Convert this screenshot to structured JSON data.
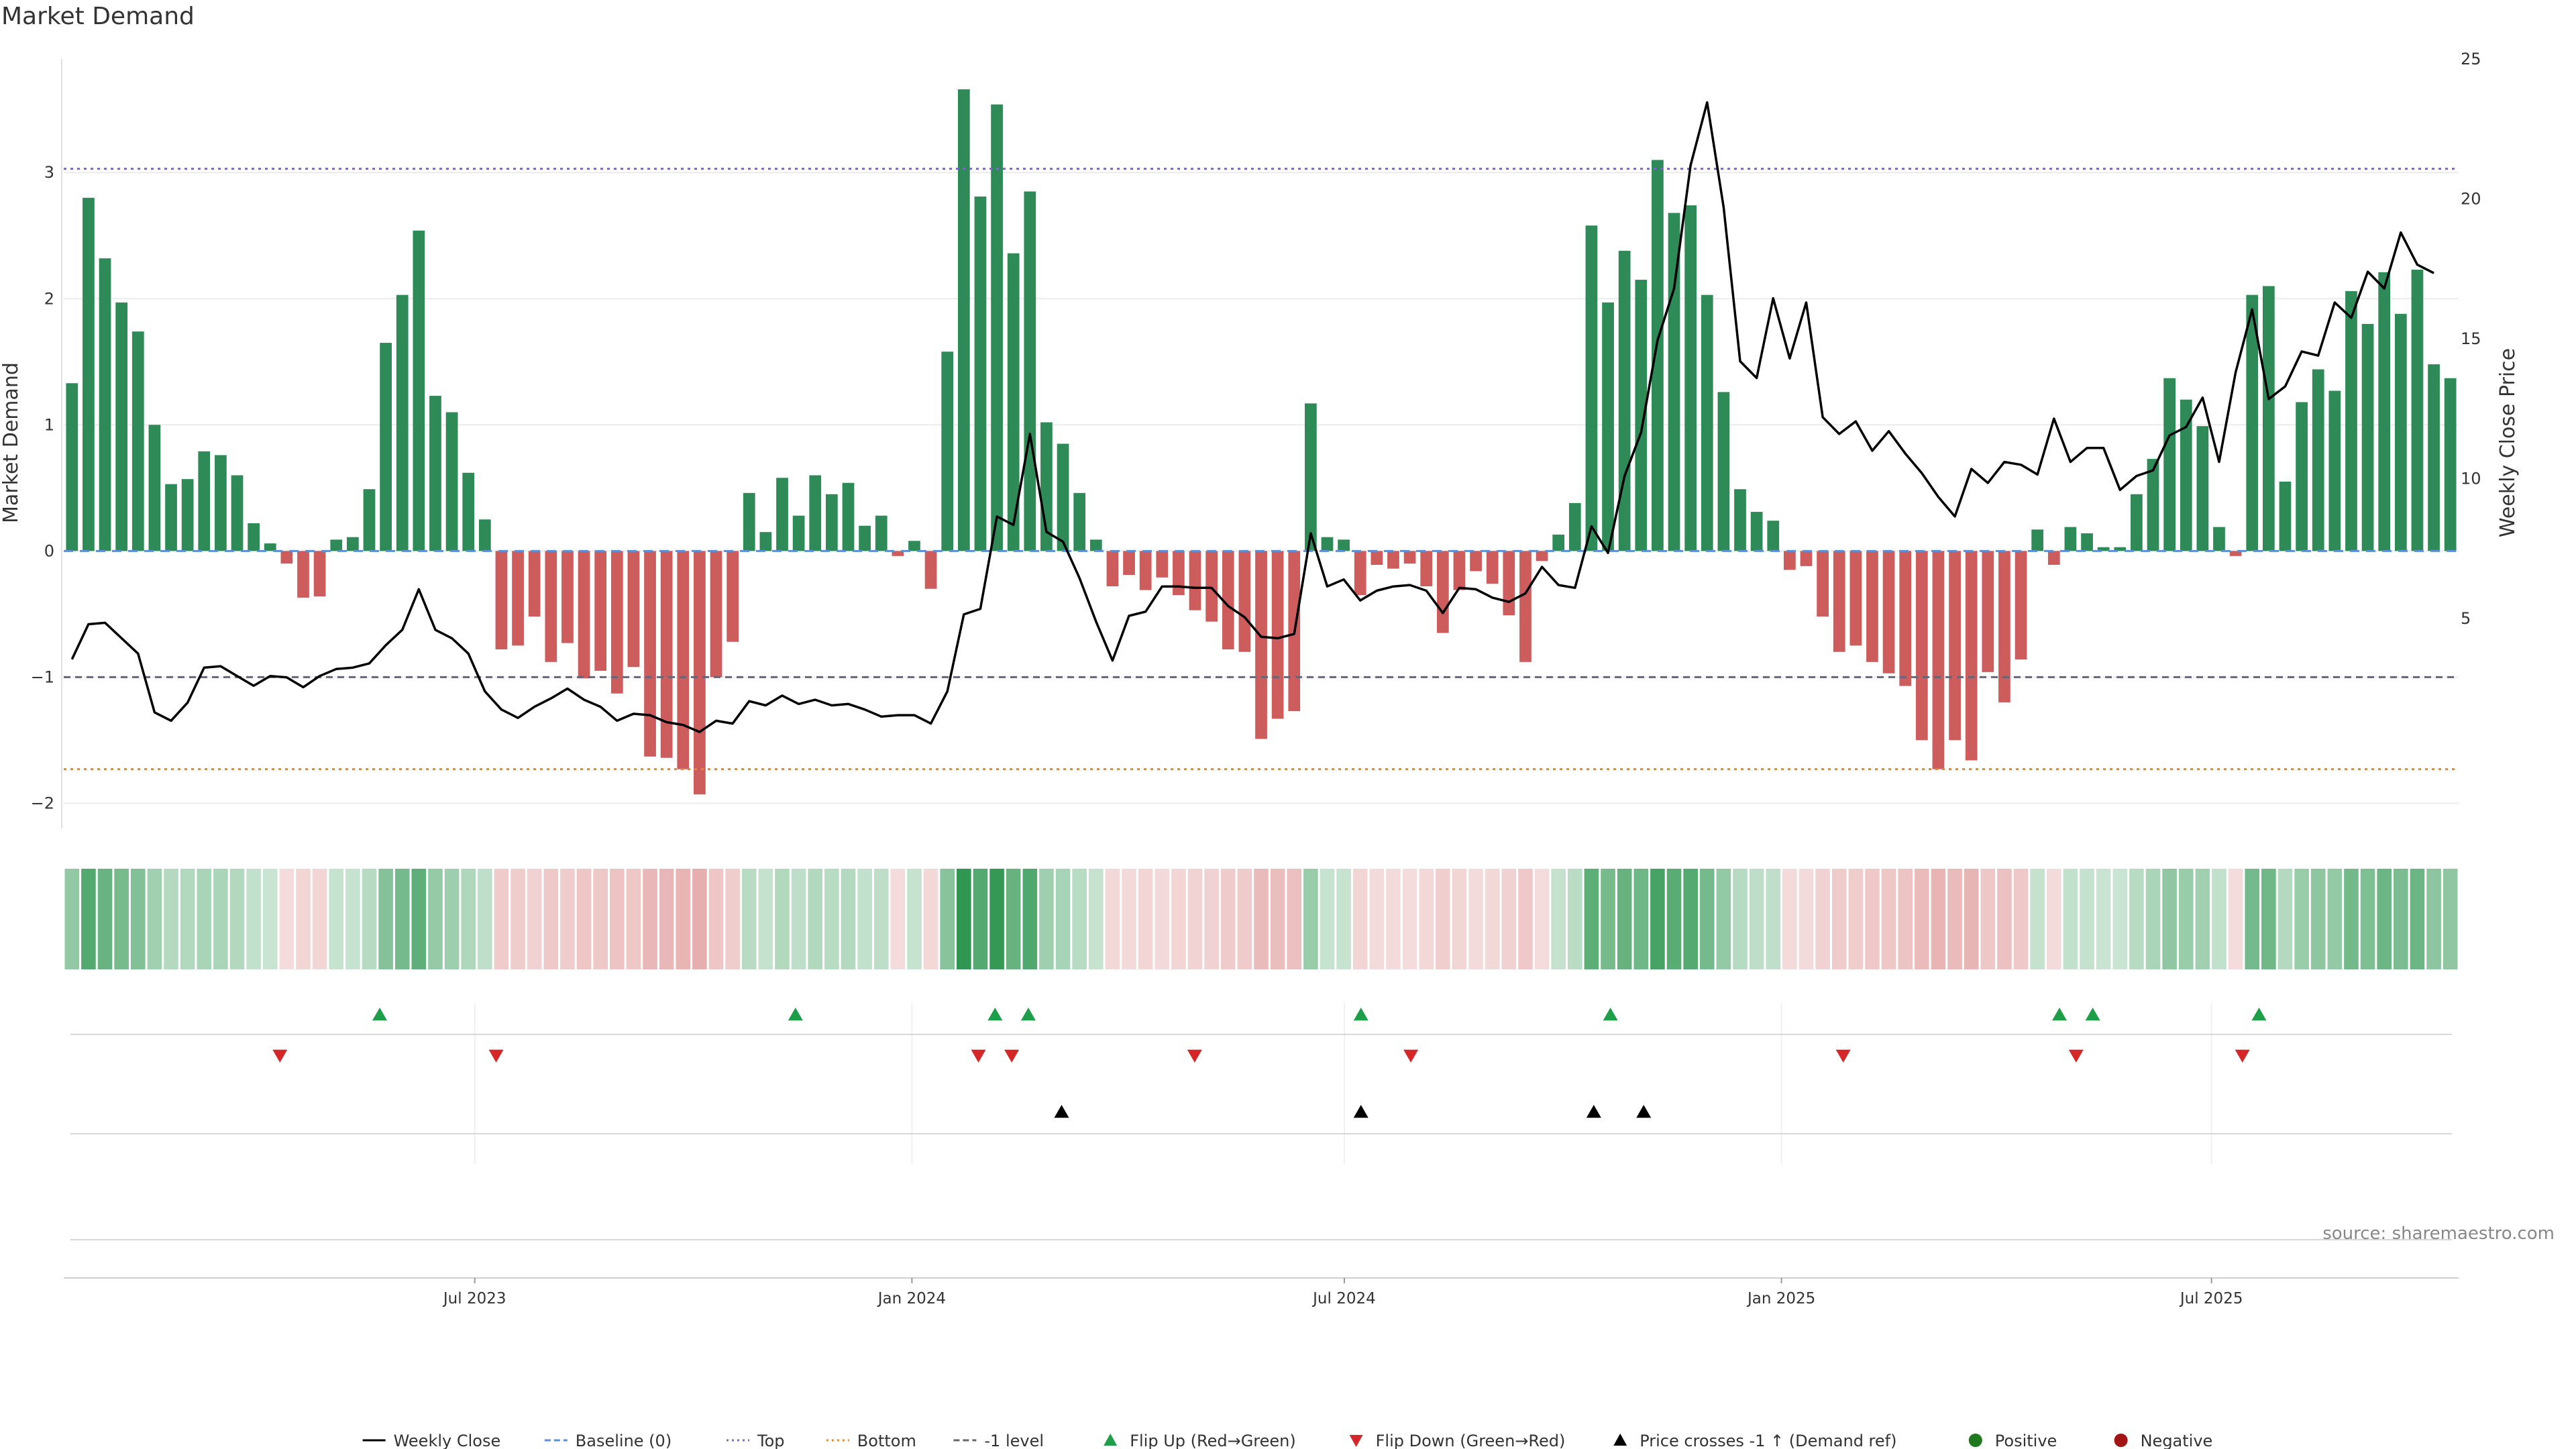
{
  "page": {
    "title": "Market Demand",
    "source": "source: sharemaestro.com"
  },
  "chart_data": {
    "type": "bar",
    "title": "Market Demand",
    "ylabel": "Market Demand",
    "y2label": "Weekly Close Price",
    "ylim": [
      -2.2,
      3.9
    ],
    "y2lim": [
      -2.5,
      25
    ],
    "yticks": [
      3,
      2,
      1,
      0,
      -1,
      -2
    ],
    "y2ticks": [
      25,
      20,
      15,
      10,
      5
    ],
    "x_start": "2023-01-09",
    "x_end": "2025-10-13",
    "xtick_labels": [
      {
        "date": "2023-07-01",
        "label": "Jul 2023"
      },
      {
        "date": "2024-01-01",
        "label": "Jan 2024"
      },
      {
        "date": "2024-07-01",
        "label": "Jul 2024"
      },
      {
        "date": "2025-01-01",
        "label": "Jan 2025"
      },
      {
        "date": "2025-07-01",
        "label": "Jul 2025"
      }
    ],
    "reference_lines": [
      {
        "name": "Top",
        "value": 3.03,
        "color": "#7b68c8",
        "dash": "dotted"
      },
      {
        "name": "-1 level",
        "value": -1.0,
        "color": "#666677",
        "dash": "dashed"
      },
      {
        "name": "Bottom",
        "value": -1.73,
        "color": "#e08a2c",
        "dash": "dotted"
      }
    ],
    "colors": {
      "positive": "#2e8b57",
      "negative": "#cd5c5c",
      "price": "#000000",
      "baseline": "#5b8fd6",
      "flip_up": "#1f9e4a",
      "flip_down": "#d62728",
      "cross": "#000000",
      "grid": "#ececec"
    },
    "demand_weekly": [
      1.33,
      2.8,
      2.32,
      1.97,
      1.74,
      1.0,
      0.53,
      0.57,
      0.79,
      0.76,
      0.6,
      0.22,
      0.06,
      -0.1,
      -0.37,
      -0.36,
      0.09,
      0.11,
      0.49,
      1.65,
      2.03,
      2.54,
      1.23,
      1.1,
      0.62,
      0.25,
      -0.78,
      -0.75,
      -0.52,
      -0.88,
      -0.73,
      -1.01,
      -0.95,
      -1.13,
      -0.92,
      -1.63,
      -1.64,
      -1.73,
      -1.93,
      -1.0,
      -0.72,
      0.46,
      0.15,
      0.58,
      0.28,
      0.6,
      0.45,
      0.54,
      0.2,
      0.28,
      -0.04,
      0.08,
      -0.3,
      1.58,
      3.66,
      2.81,
      3.54,
      2.36,
      2.85,
      1.02,
      0.85,
      0.46,
      0.09,
      -0.28,
      -0.19,
      -0.31,
      -0.21,
      -0.35,
      -0.47,
      -0.56,
      -0.78,
      -0.8,
      -1.49,
      -1.33,
      -1.27,
      1.17,
      0.11,
      0.09,
      -0.35,
      -0.11,
      -0.14,
      -0.1,
      -0.28,
      -0.65,
      -0.31,
      -0.16,
      -0.26,
      -0.51,
      -0.88,
      -0.08,
      0.13,
      0.38,
      2.58,
      1.97,
      2.38,
      2.15,
      3.1,
      2.68,
      2.74,
      2.03,
      1.26,
      0.49,
      0.31,
      0.24,
      -0.15,
      -0.12,
      -0.52,
      -0.8,
      -0.75,
      -0.88,
      -0.97,
      -1.07,
      -1.5,
      -1.73,
      -1.5,
      -1.66,
      -0.96,
      -1.2,
      -0.86,
      0.17,
      -0.11,
      0.19,
      0.14,
      0.03,
      0.03,
      0.45,
      0.73,
      1.37,
      1.2,
      0.99,
      0.19,
      -0.04,
      2.03,
      2.1,
      0.55,
      1.18,
      1.44,
      1.27,
      2.06,
      1.8,
      2.21,
      1.88,
      2.23,
      1.48,
      1.37
    ],
    "price_weekly": [
      3.55,
      4.8,
      4.85,
      4.3,
      3.75,
      1.65,
      1.35,
      2.0,
      3.25,
      3.3,
      2.95,
      2.6,
      2.95,
      2.9,
      2.55,
      2.95,
      3.2,
      3.25,
      3.4,
      4.05,
      4.6,
      6.05,
      4.6,
      4.3,
      3.75,
      2.4,
      1.75,
      1.45,
      1.85,
      2.15,
      2.5,
      2.1,
      1.85,
      1.35,
      1.6,
      1.55,
      1.3,
      1.2,
      0.95,
      1.35,
      1.25,
      2.05,
      1.9,
      2.25,
      1.95,
      2.1,
      1.9,
      1.95,
      1.75,
      1.5,
      1.55,
      1.55,
      1.25,
      2.4,
      5.15,
      5.35,
      8.65,
      8.35,
      11.6,
      8.1,
      7.75,
      6.45,
      4.9,
      3.5,
      5.1,
      5.25,
      6.15,
      6.15,
      6.1,
      6.1,
      5.45,
      5.05,
      4.35,
      4.3,
      4.45,
      8.05,
      6.15,
      6.4,
      5.65,
      6.0,
      6.15,
      6.2,
      6.0,
      5.2,
      6.1,
      6.05,
      5.75,
      5.6,
      5.9,
      6.85,
      6.2,
      6.1,
      8.3,
      7.35,
      10.1,
      11.65,
      14.95,
      16.8,
      21.2,
      23.45,
      19.7,
      14.2,
      13.6,
      16.45,
      14.3,
      16.3,
      12.2,
      11.6,
      12.05,
      11.0,
      11.7,
      10.9,
      10.2,
      9.35,
      8.65,
      10.35,
      9.85,
      10.6,
      10.5,
      10.15,
      12.15,
      10.6,
      11.1,
      11.1,
      9.6,
      10.1,
      10.3,
      11.55,
      11.85,
      12.9,
      10.6,
      13.8,
      16.05,
      12.85,
      13.3,
      14.55,
      14.4,
      16.3,
      15.75,
      17.4,
      16.8,
      18.8,
      17.65,
      17.35
    ],
    "heat_strip": {
      "colorscale": "green for positive demand, red for negative demand, intensity by magnitude"
    },
    "signal_rows": [
      {
        "name": "Flip Up (Red→Green)",
        "marker": "triangle-up",
        "color": "#1f9e4a",
        "dates": [
          "2023-05-22",
          "2023-11-13",
          "2024-02-05",
          "2024-02-19",
          "2024-07-08",
          "2024-10-21",
          "2025-04-28",
          "2025-05-12",
          "2025-07-21"
        ]
      },
      {
        "name": "Flip Down (Green→Red)",
        "marker": "triangle-down",
        "color": "#d62728",
        "dates": [
          "2023-04-10",
          "2023-07-10",
          "2024-01-29",
          "2024-02-12",
          "2024-04-29",
          "2024-07-29",
          "2025-01-27",
          "2025-05-05",
          "2025-07-14"
        ]
      },
      {
        "name": "Price crosses -1 ↑ (Demand ref)",
        "marker": "triangle-up",
        "color": "#000000",
        "dates": [
          "2024-03-04",
          "2024-07-08",
          "2024-10-14",
          "2024-11-04"
        ]
      },
      {
        "name": "Positive / Negative",
        "marker": "circle",
        "dates": []
      }
    ],
    "legend": [
      {
        "label": "Weekly Close",
        "kind": "line-solid",
        "color": "#000000"
      },
      {
        "label": "Baseline (0)",
        "kind": "line-dashed",
        "color": "#5b8fd6"
      },
      {
        "label": "Top",
        "kind": "line-dotted",
        "color": "#7b68c8"
      },
      {
        "label": "Bottom",
        "kind": "line-dotted",
        "color": "#e08a2c"
      },
      {
        "label": "-1 level",
        "kind": "line-dashed",
        "color": "#666677"
      },
      {
        "label": "Flip Up (Red→Green)",
        "kind": "tri-up",
        "color": "#1f9e4a"
      },
      {
        "label": "Flip Down (Green→Red)",
        "kind": "tri-down",
        "color": "#d62728"
      },
      {
        "label": "Price crosses -1 ↑ (Demand ref)",
        "kind": "tri-up",
        "color": "#000000"
      },
      {
        "label": "Positive",
        "kind": "dot",
        "color": "#1f7a1f"
      },
      {
        "label": "Negative",
        "kind": "dot",
        "color": "#a31515"
      }
    ],
    "legend_position": "bottom-center"
  }
}
